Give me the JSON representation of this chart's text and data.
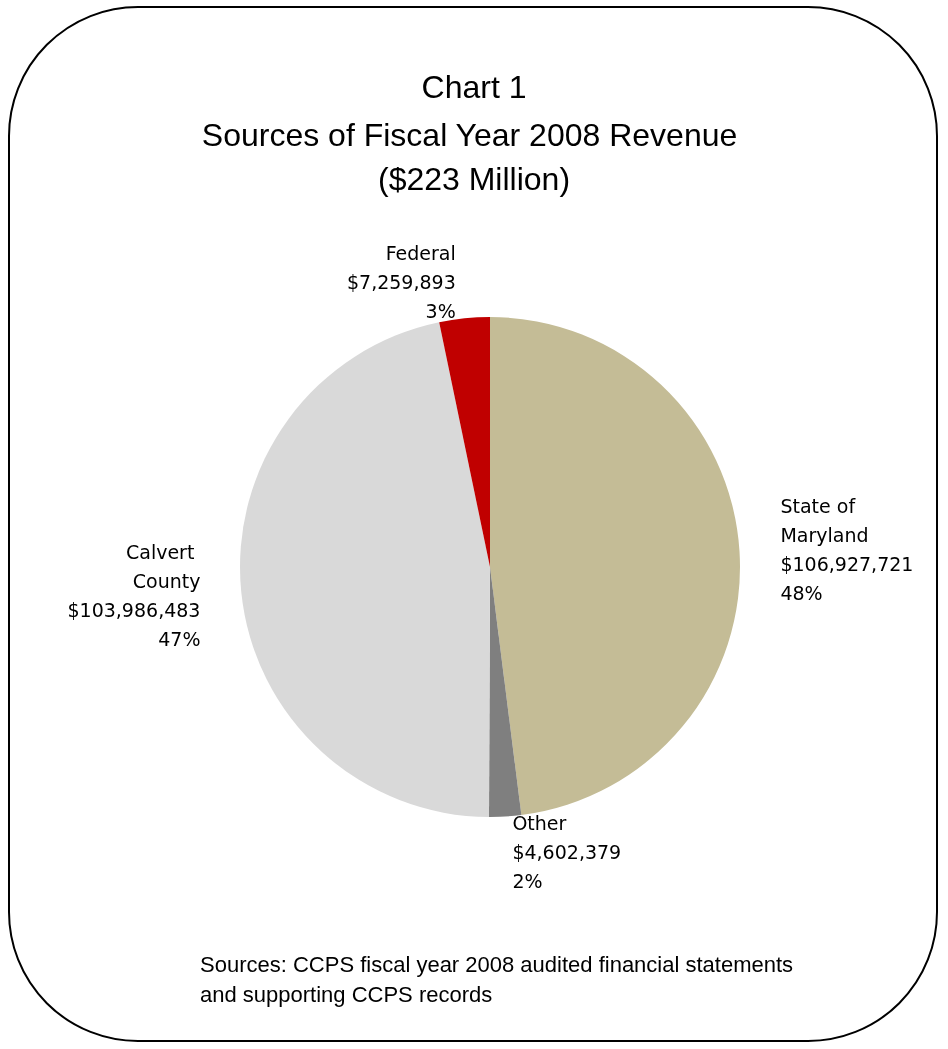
{
  "chart_data": {
    "type": "pie",
    "title": "Chart 1",
    "subtitle": "Sources of Fiscal Year 2008 Revenue ($223 Million)",
    "categories": [
      "State of Maryland",
      "Other",
      "Calvert County",
      "Federal"
    ],
    "values": [
      106927721,
      4602379,
      103986483,
      7259893
    ],
    "colors": [
      "#c4bc96",
      "#7f7f7f",
      "#d9d9d9",
      "#c00000"
    ],
    "value_labels": [
      "$106,927,721\n48%",
      "$4,602,379\n2%",
      "$103,986,483\n47%",
      "$7,259,893\n3%"
    ],
    "annotations": [
      "Sources: CCPS fiscal year 2008 audited financial statements and supporting CCPS records"
    ]
  }
}
